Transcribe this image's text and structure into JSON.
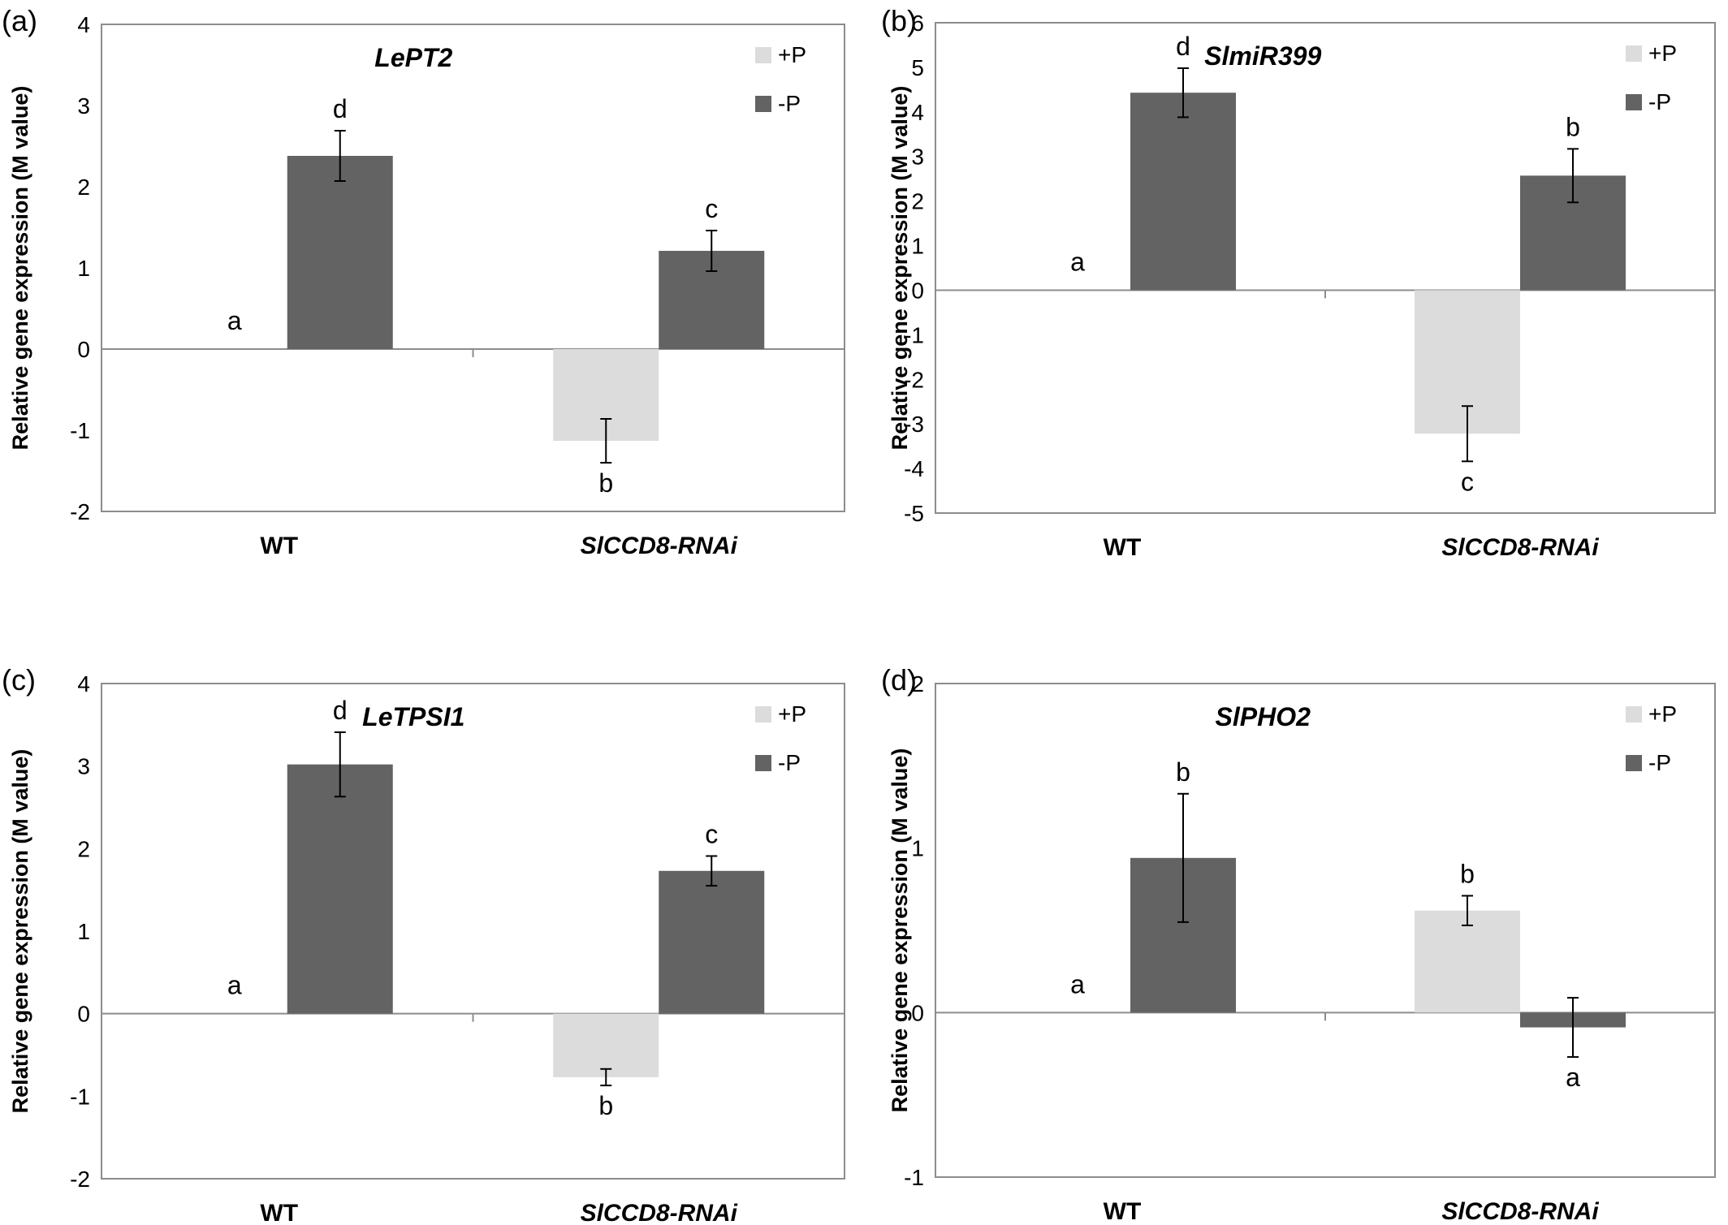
{
  "chart_data": [
    {
      "panel": "(a)",
      "type": "bar",
      "title": "LePT2",
      "ylabel": "Relative gene expression (M value)",
      "categories": [
        "WT",
        "SlCCD8-RNAi"
      ],
      "ylim": [
        -2,
        4
      ],
      "yticks": [
        4,
        3,
        2,
        1,
        0,
        -1,
        -2
      ],
      "legend_position": "top-right",
      "series": [
        {
          "name": "+P",
          "color": "#dcdcdc",
          "values": [
            0,
            -1.13
          ],
          "errors": [
            0,
            0.27
          ],
          "letters": [
            "a",
            "b"
          ]
        },
        {
          "name": "-P",
          "color": "#636363",
          "values": [
            2.38,
            1.21
          ],
          "errors": [
            0.31,
            0.25
          ],
          "letters": [
            "d",
            "c"
          ]
        }
      ]
    },
    {
      "panel": "(b)",
      "type": "bar",
      "title": "SlmiR399",
      "ylabel": "Relative gene expression (M value)",
      "categories": [
        "WT",
        "SlCCD8-RNAi"
      ],
      "ylim": [
        -5,
        6
      ],
      "yticks": [
        6,
        5,
        4,
        3,
        2,
        1,
        0,
        -1,
        -2,
        -3,
        -4,
        -5
      ],
      "legend_position": "top-right",
      "series": [
        {
          "name": "+P",
          "color": "#dcdcdc",
          "values": [
            0,
            -3.22
          ],
          "errors": [
            0,
            0.62
          ],
          "letters": [
            "a",
            "c"
          ]
        },
        {
          "name": "-P",
          "color": "#636363",
          "values": [
            4.43,
            2.57
          ],
          "errors": [
            0.55,
            0.6
          ],
          "letters": [
            "d",
            "b"
          ]
        }
      ]
    },
    {
      "panel": "(c)",
      "type": "bar",
      "title": "LeTPSI1",
      "ylabel": "Relative gene expression (M value)",
      "categories": [
        "WT",
        "SlCCD8-RNAi"
      ],
      "ylim": [
        -2,
        4
      ],
      "yticks": [
        4,
        3,
        2,
        1,
        0,
        -1,
        -2
      ],
      "legend_position": "top-right",
      "series": [
        {
          "name": "+P",
          "color": "#dcdcdc",
          "values": [
            0,
            -0.77
          ],
          "errors": [
            0,
            0.1
          ],
          "letters": [
            "a",
            "b"
          ]
        },
        {
          "name": "-P",
          "color": "#636363",
          "values": [
            3.02,
            1.73
          ],
          "errors": [
            0.39,
            0.18
          ],
          "letters": [
            "d",
            "c"
          ]
        }
      ]
    },
    {
      "panel": "(d)",
      "type": "bar",
      "title": "SlPHO2",
      "ylabel": "Relative gene expression (M value)",
      "categories": [
        "WT",
        "SlCCD8-RNAi"
      ],
      "ylim": [
        -1,
        2
      ],
      "yticks": [
        2,
        1,
        0,
        -1
      ],
      "legend_position": "top-right",
      "series": [
        {
          "name": "+P",
          "color": "#dcdcdc",
          "values": [
            0,
            0.62
          ],
          "errors": [
            0,
            0.09
          ],
          "letters": [
            "a",
            "b"
          ]
        },
        {
          "name": "-P",
          "color": "#636363",
          "values": [
            0.94,
            -0.09
          ],
          "errors": [
            0.39,
            0.18
          ],
          "letters": [
            "b",
            "a"
          ]
        }
      ]
    }
  ]
}
